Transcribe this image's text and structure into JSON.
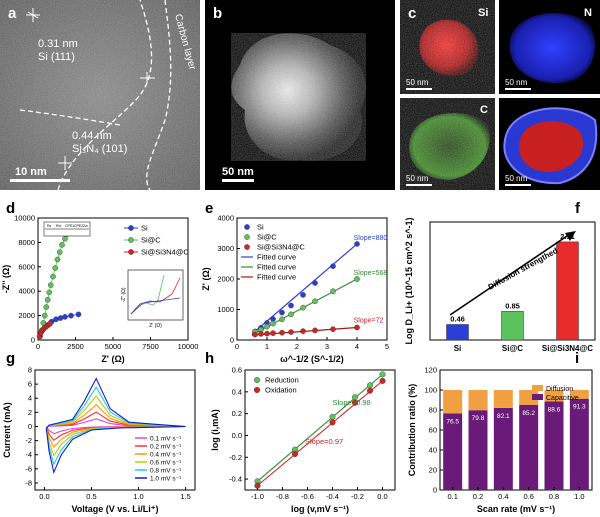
{
  "figure": {
    "panel_labels": [
      "a",
      "b",
      "c",
      "d",
      "e",
      "f",
      "g",
      "h",
      "i"
    ],
    "panel_a": {
      "ann1_line1": "0.31 nm",
      "ann1_line2": "Si (111)",
      "ann2_line1": "0.44 nm",
      "ann2_line2": "Si₃N₄ (101)",
      "carbon_label": "Carbon layer",
      "scale": "10 nm"
    },
    "panel_b": {
      "scale": "50 nm"
    },
    "panel_c": {
      "maps": [
        {
          "element": "Si",
          "scale": "50 nm",
          "color": "#e01818"
        },
        {
          "element": "N",
          "scale": "50 nm",
          "color": "#1f2fe0"
        },
        {
          "element": "C",
          "scale": "50 nm",
          "color": "#2ca02c"
        },
        {
          "element": "",
          "scale": "50 nm",
          "color": "#1f2fe0"
        }
      ]
    }
  },
  "chart_data": [
    {
      "panel": "d",
      "type": "scatter",
      "xlabel": "Z' (Ω)",
      "ylabel": "-Z'' (Ω)",
      "xlim": [
        0,
        10000
      ],
      "ylim": [
        0,
        10000
      ],
      "xticks": [
        0,
        2500,
        5000,
        7500,
        10000
      ],
      "yticks": [
        0,
        2000,
        4000,
        6000,
        8000,
        10000
      ],
      "legend": [
        "Si",
        "Si@C",
        "Si@Si3N4@C"
      ],
      "circuit_labels": [
        "Rs",
        "Rct",
        "CPE1",
        "CPE2",
        "Zw"
      ],
      "series": [
        {
          "name": "Si",
          "color": "#2a3fd8",
          "x": [
            300,
            600,
            900,
            1200,
            1500,
            1800,
            2200,
            2700
          ],
          "y": [
            800,
            1200,
            1500,
            1700,
            1800,
            1900,
            2000,
            2100
          ]
        },
        {
          "name": "Si@C",
          "color": "#5cc35c",
          "x": [
            150,
            250,
            350,
            450,
            550,
            650,
            750,
            850,
            1000,
            1150,
            1300,
            1450,
            1600,
            1800,
            2000,
            2200
          ],
          "y": [
            300,
            800,
            1400,
            2000,
            2700,
            3300,
            3900,
            4500,
            5200,
            5900,
            6600,
            7200,
            7800,
            8300,
            8700,
            9100
          ]
        },
        {
          "name": "Si@Si3N4@C",
          "color": "#d32222",
          "x": [
            100,
            200,
            300,
            400,
            500,
            600,
            700,
            800
          ],
          "y": [
            300,
            600,
            800,
            950,
            1050,
            1150,
            1250,
            1350
          ]
        }
      ],
      "inset": {
        "xlabel": "Z' (Ω)",
        "ylabel": "-Z'' (Ω)"
      }
    },
    {
      "panel": "e",
      "type": "scatter",
      "xlabel": "ω^-1/2 (S^-1/2)",
      "ylabel": "Z' (Ω)",
      "xlim": [
        0,
        5
      ],
      "ylim": [
        0,
        4000
      ],
      "xticks": [
        0,
        1,
        2,
        3,
        4,
        5
      ],
      "yticks": [
        0,
        1000,
        2000,
        3000,
        4000
      ],
      "legend": [
        "Si",
        "Si@C",
        "Si@Si3N4@C",
        "Fitted curve",
        "Fitted curve",
        "Fitted curve"
      ],
      "slopes": [
        "Slope=880",
        "Slope=568",
        "Slope=72"
      ],
      "series": [
        {
          "name": "Si",
          "color": "#2a3fd8",
          "x": [
            0.6,
            0.8,
            1.0,
            1.2,
            1.5,
            1.8,
            2.2,
            2.6,
            3.2,
            4.0
          ],
          "y": [
            280,
            400,
            560,
            690,
            900,
            1130,
            1480,
            1870,
            2420,
            3150
          ]
        },
        {
          "name": "Si@C",
          "color": "#5cc35c",
          "x": [
            0.6,
            0.8,
            1.0,
            1.2,
            1.5,
            1.8,
            2.2,
            2.6,
            3.2,
            4.0
          ],
          "y": [
            270,
            340,
            440,
            540,
            680,
            840,
            1060,
            1270,
            1600,
            2000
          ]
        },
        {
          "name": "Si@Si3N4@C",
          "color": "#d32222",
          "x": [
            0.6,
            0.8,
            1.0,
            1.2,
            1.5,
            1.8,
            2.2,
            2.6,
            3.2,
            4.0
          ],
          "y": [
            180,
            200,
            210,
            225,
            240,
            260,
            290,
            315,
            355,
            410
          ]
        }
      ],
      "fits": [
        {
          "color": "#2a3fd8",
          "x": [
            0.5,
            4.0
          ],
          "y": [
            200,
            3150
          ]
        },
        {
          "color": "#2e8b2e",
          "x": [
            0.5,
            4.0
          ],
          "y": [
            170,
            2000
          ]
        },
        {
          "color": "#a01818",
          "x": [
            0.5,
            4.0
          ],
          "y": [
            160,
            410
          ]
        }
      ]
    },
    {
      "panel": "f",
      "type": "bar",
      "ylabel": "Log D_Li+ (10^-15 cm^2 s^-1)",
      "categories": [
        "Si",
        "Si@C",
        "Si@Si3N4@C"
      ],
      "values": [
        0.46,
        0.85,
        2.91
      ],
      "value_labels": [
        "0.46",
        "0.85",
        "2.91"
      ],
      "colors": [
        "#2a3fd8",
        "#5cc35c",
        "#e82b2b"
      ],
      "ylim": [
        0,
        3.5
      ],
      "annotation": "Diffusion strengthed"
    },
    {
      "panel": "g",
      "type": "line",
      "xlabel": "Voltage (V vs. Li/Li⁺)",
      "ylabel": "Current (mA)",
      "xlim": [
        -0.1,
        1.6
      ],
      "ylim": [
        -9,
        8
      ],
      "xticks": [
        0.0,
        0.5,
        1.0,
        1.5
      ],
      "yticks": [
        -8,
        -6,
        -4,
        -2,
        0,
        2,
        4,
        6,
        8
      ],
      "legend": [
        "0.1 mV s⁻¹",
        "0.2 mV s⁻¹",
        "0.4 mV s⁻¹",
        "0.6 mV s⁻¹",
        "0.8 mV s⁻¹",
        "1.0 mV s⁻¹"
      ],
      "series": [
        {
          "name": "0.1",
          "color": "#e040e0",
          "scale": 0.16
        },
        {
          "name": "0.2",
          "color": "#ff3030",
          "scale": 0.3
        },
        {
          "name": "0.4",
          "color": "#ff9900",
          "scale": 0.45
        },
        {
          "name": "0.6",
          "color": "#c8c800",
          "scale": 0.63
        },
        {
          "name": "0.8",
          "color": "#20c8ff",
          "scale": 0.82
        },
        {
          "name": "1.0",
          "color": "#1020c0",
          "scale": 1.0
        }
      ]
    },
    {
      "panel": "h",
      "type": "scatter",
      "xlabel": "log (v,mV s⁻¹)",
      "ylabel": "log (i,mA)",
      "xlim": [
        -1.1,
        0.1
      ],
      "ylim": [
        -0.5,
        0.6
      ],
      "xticks": [
        -1.0,
        -0.8,
        -0.6,
        -0.4,
        -0.2,
        0.0
      ],
      "yticks": [
        -0.4,
        -0.2,
        0.0,
        0.2,
        0.4,
        0.6
      ],
      "legend": [
        "Reduction",
        "Oxidation"
      ],
      "slopes": [
        "Slope=0.98",
        "Slope=0.97"
      ],
      "series": [
        {
          "name": "Reduction",
          "color": "#5cc35c",
          "x": [
            -1.0,
            -0.7,
            -0.4,
            -0.22,
            -0.1,
            0.0
          ],
          "y": [
            -0.42,
            -0.13,
            0.17,
            0.35,
            0.46,
            0.56
          ]
        },
        {
          "name": "Oxidation",
          "color": "#d32222",
          "x": [
            -1.0,
            -0.7,
            -0.4,
            -0.22,
            -0.1,
            0.0
          ],
          "y": [
            -0.46,
            -0.17,
            0.12,
            0.3,
            0.41,
            0.5
          ]
        }
      ]
    },
    {
      "panel": "i",
      "type": "bar",
      "xlabel": "Scan rate (mV s⁻¹)",
      "ylabel": "Contribution ratio (%)",
      "ylim": [
        0,
        120
      ],
      "yticks": [
        0,
        20,
        40,
        60,
        80,
        100,
        120
      ],
      "categories": [
        "0.1",
        "0.2",
        "0.4",
        "0.6",
        "0.8",
        "1.0"
      ],
      "legend": [
        "Diffusion",
        "Capacitive"
      ],
      "series": [
        {
          "name": "Capacitive",
          "color": "#6a1b7a",
          "values": [
            76.5,
            79.8,
            82.1,
            85.2,
            88.6,
            91.3
          ]
        },
        {
          "name": "Diffusion",
          "color": "#f0a040",
          "values": [
            23.5,
            20.2,
            17.9,
            14.8,
            11.4,
            8.7
          ]
        }
      ],
      "value_labels": [
        "76.5",
        "79.8",
        "82.1",
        "85.2",
        "88.6",
        "91.3"
      ]
    }
  ]
}
